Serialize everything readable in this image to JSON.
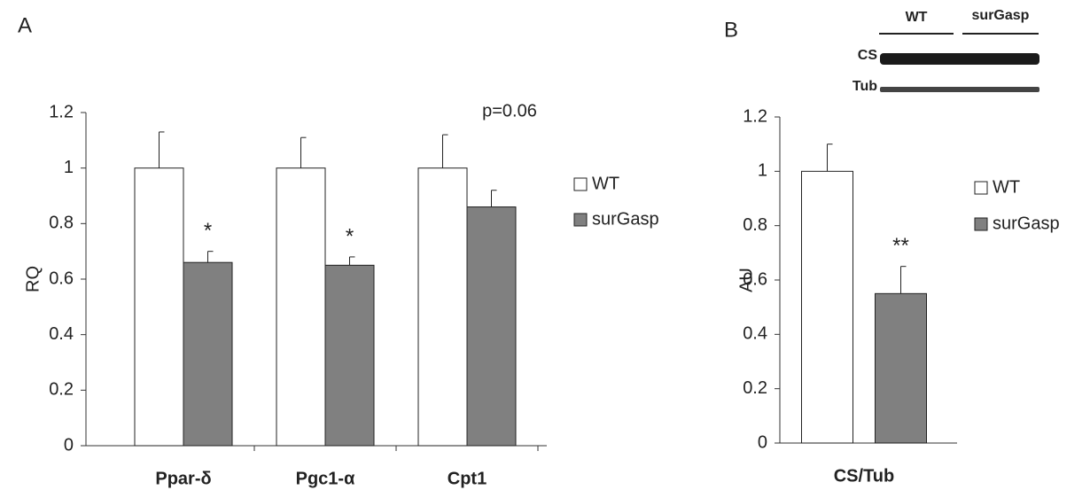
{
  "chart_data": [
    {
      "type": "bar",
      "label": "A",
      "ylabel": "RQ",
      "categories": [
        "Ppar-δ",
        "Pgc1-α",
        "Cpt1"
      ],
      "series": [
        {
          "name": "WT",
          "color": "#ffffff",
          "values": [
            1,
            1,
            1
          ],
          "errors": [
            0.13,
            0.11,
            0.12
          ]
        },
        {
          "name": "surGasp",
          "color": "#808080",
          "values": [
            0.66,
            0.65,
            0.86
          ],
          "errors": [
            0.04,
            0.03,
            0.06
          ],
          "annotations": [
            "*",
            "*",
            null
          ]
        }
      ],
      "annotations": [
        null,
        null,
        "p=0.06"
      ],
      "ylim": [
        0,
        1.2
      ],
      "yticks": [
        0,
        0.2,
        0.4,
        0.6,
        0.8,
        1,
        1.2
      ],
      "grid": false,
      "legend": "right"
    },
    {
      "type": "bar",
      "label": "B",
      "ylabel": "AU",
      "categories": [
        "CS/Tub"
      ],
      "series": [
        {
          "name": "WT",
          "color": "#ffffff",
          "values": [
            1
          ],
          "errors": [
            0.1
          ]
        },
        {
          "name": "surGasp",
          "color": "#808080",
          "values": [
            0.55
          ],
          "errors": [
            0.1
          ],
          "annotations": [
            "**"
          ]
        }
      ],
      "ylim": [
        0,
        1.2
      ],
      "yticks": [
        0,
        0.2,
        0.4,
        0.6,
        0.8,
        1,
        1.2
      ],
      "grid": false,
      "legend": "right",
      "blot": {
        "lanes": [
          "WT",
          "surGasp"
        ],
        "rows": [
          "CS",
          "Tub"
        ]
      }
    }
  ]
}
